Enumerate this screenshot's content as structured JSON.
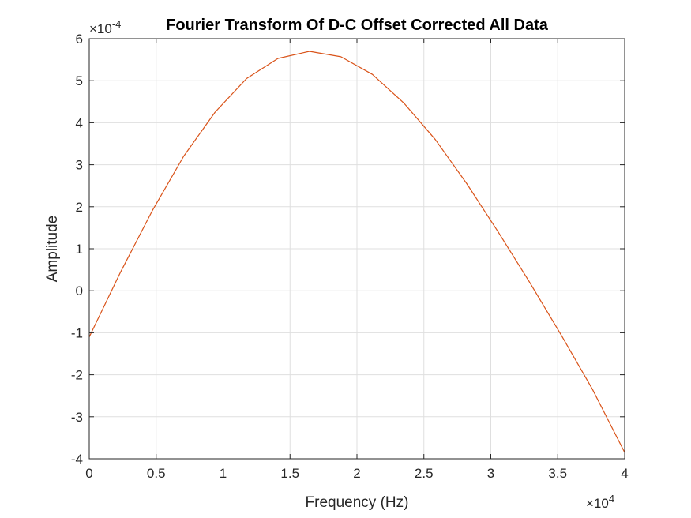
{
  "chart_data": {
    "type": "line",
    "title": "Fourier Transform Of D-C Offset Corrected All Data",
    "xlabel": "Frequency (Hz)",
    "ylabel": "Amplitude",
    "x_exponent": {
      "base": "×10",
      "power": "4"
    },
    "y_exponent": {
      "base": "×10",
      "power": "-4"
    },
    "xlim": [
      0,
      4
    ],
    "ylim": [
      -4,
      6
    ],
    "x_ticks": [
      "0",
      "0.5",
      "1",
      "1.5",
      "2",
      "2.5",
      "3",
      "3.5",
      "4"
    ],
    "y_ticks": [
      "-4",
      "-3",
      "-2",
      "-1",
      "0",
      "1",
      "2",
      "3",
      "4",
      "5",
      "6"
    ],
    "grid": true,
    "series": [
      {
        "color": "#d95319",
        "x": [
          0,
          0.235,
          0.47,
          0.705,
          0.94,
          1.175,
          1.41,
          1.645,
          1.88,
          2.115,
          2.35,
          2.585,
          2.82,
          3.055,
          3.29,
          3.525,
          3.76,
          4.0
        ],
        "y": [
          -1.1,
          0.45,
          1.9,
          3.2,
          4.25,
          5.05,
          5.53,
          5.7,
          5.57,
          5.15,
          4.47,
          3.6,
          2.55,
          1.4,
          0.2,
          -1.05,
          -2.35,
          -3.85
        ]
      }
    ]
  }
}
